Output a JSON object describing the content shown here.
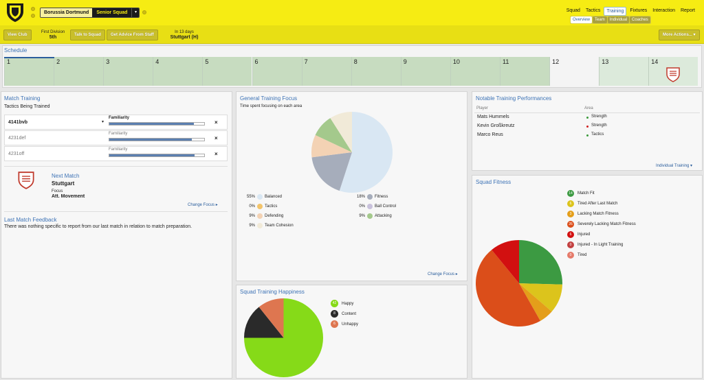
{
  "header": {
    "club_name": "Borussia Dortmund",
    "squad_label": "Senior Squad",
    "nav": [
      "Squad",
      "Tactics",
      "Training",
      "Fixtures",
      "Interaction",
      "Report"
    ],
    "nav_active": "Training",
    "subnav": [
      "Overview",
      "Team",
      "Individual",
      "Coaches"
    ],
    "subnav_active": "Overview"
  },
  "subbar": {
    "view_club": "View Club",
    "division_label": "First Division",
    "division_pos": "5th",
    "talk_to_squad": "Talk to Squad",
    "get_advice": "Get Advice From Staff",
    "next_match_when": "In 13 days",
    "next_match_opponent": "Stuttgart (H)",
    "more_actions": "More Actions..."
  },
  "schedule": {
    "title": "Schedule",
    "days": [
      "1",
      "2",
      "3",
      "4",
      "5",
      "6",
      "7",
      "8",
      "9",
      "10",
      "11",
      "12",
      "13",
      "14"
    ]
  },
  "match_training": {
    "title": "Match Training",
    "subtitle": "Tactics Being Trained",
    "tactics": [
      {
        "name": "4141bvb",
        "familiarity_label": "Familiarity",
        "familiarity": 0.89
      },
      {
        "name": "4231def",
        "familiarity_label": "Familiarity",
        "familiarity": 0.87
      },
      {
        "name": "4231off",
        "familiarity_label": "Familiarity",
        "familiarity": 0.9
      }
    ],
    "remove_symbol": "×",
    "next_match_title": "Next Match",
    "next_match_team": "Stuttgart",
    "focus_label": "Focus",
    "focus_value": "Att. Movement",
    "change_focus": "Change Focus ▸"
  },
  "feedback": {
    "title": "Last Match Feedback",
    "text": "There was nothing specific to report from our last match in relation to match preparation."
  },
  "general_focus": {
    "title": "General Training Focus",
    "subtitle": "Time spent focusing on each area",
    "change_focus": "Change Focus ▸",
    "chart_data": {
      "type": "pie",
      "slices": [
        {
          "label": "Balanced",
          "value": 55,
          "pct": "55%",
          "color": "#d9e7f3"
        },
        {
          "label": "Fitness",
          "value": 18,
          "pct": "18%",
          "color": "#a6adbb"
        },
        {
          "label": "Tactics",
          "value": 0,
          "pct": "0%",
          "color": "#f3c46a"
        },
        {
          "label": "Ball Control",
          "value": 0,
          "pct": "0%",
          "color": "#c9c2dc"
        },
        {
          "label": "Defending",
          "value": 9,
          "pct": "9%",
          "color": "#f3d2b4"
        },
        {
          "label": "Attacking",
          "value": 9,
          "pct": "9%",
          "color": "#a4c98c"
        },
        {
          "label": "Team Cohesion",
          "value": 9,
          "pct": "9%",
          "color": "#f1ead8"
        }
      ]
    }
  },
  "performances": {
    "title": "Notable Training Performances",
    "col_player": "Player",
    "col_area": "Area",
    "rows": [
      {
        "player": "Mats Hummels",
        "area": "Strength",
        "color": "#3a9a3a"
      },
      {
        "player": "Kevin Großkreutz",
        "area": "Strength",
        "color": "#d02020"
      },
      {
        "player": "Marco Reus",
        "area": "Tactics",
        "color": "#3a9a3a"
      }
    ],
    "link": "Individual Training ▾"
  },
  "happiness": {
    "title": "Squad Training Happiness",
    "chart_data": {
      "type": "pie",
      "slices": [
        {
          "label": "Happy",
          "value": 42,
          "color": "#86da18"
        },
        {
          "label": "Content",
          "value": 8,
          "color": "#2a2a2a"
        },
        {
          "label": "Unhappy",
          "value": 6,
          "color": "#de7650"
        }
      ]
    }
  },
  "fitness": {
    "title": "Squad Fitness",
    "chart_data": {
      "type": "pie",
      "slices": [
        {
          "label": "Match Fit",
          "value": 14,
          "color": "#3c9a42"
        },
        {
          "label": "Tired After Last Match",
          "value": 6,
          "color": "#dcc41c"
        },
        {
          "label": "Lacking Match Fitness",
          "value": 3,
          "color": "#e49e1a"
        },
        {
          "label": "Severely Lacking Match Fitness",
          "value": 26,
          "color": "#db4e1a"
        },
        {
          "label": "Injured",
          "value": 6,
          "color": "#d21010"
        },
        {
          "label": "Injured - In Light Training",
          "value": 0,
          "color": "#c24040"
        },
        {
          "label": "Tired",
          "value": 0,
          "color": "#e57a6a"
        }
      ]
    }
  }
}
